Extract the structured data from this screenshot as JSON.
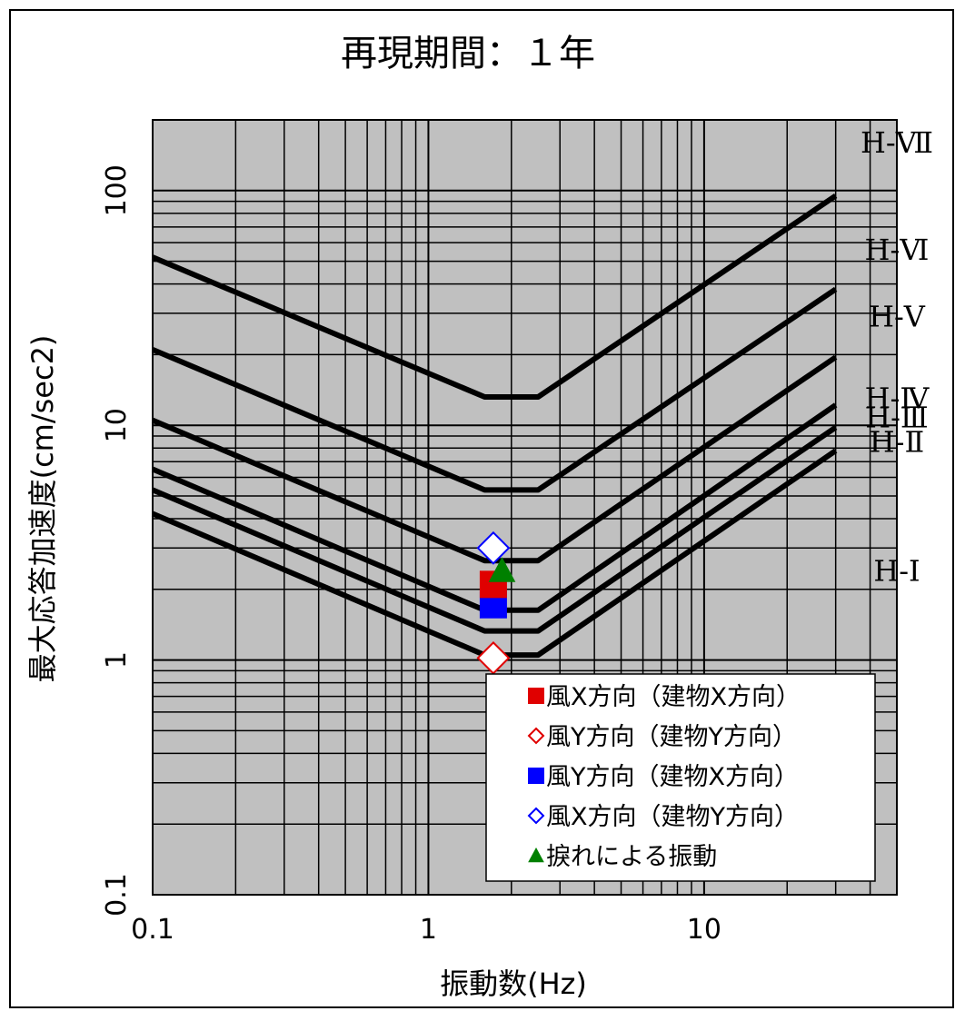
{
  "chart_data": {
    "type": "line",
    "title": "再現期間：１年",
    "xlabel": "振動数(Hz)",
    "ylabel": "最大応答加速度(cm/sec2)",
    "xscale": "log",
    "yscale": "log",
    "xlim": [
      0.1,
      50
    ],
    "ylim": [
      0.1,
      200
    ],
    "xticks": [
      "0.1",
      "1",
      "10"
    ],
    "yticks": [
      "0.1",
      "1",
      "10",
      "100"
    ],
    "grid": true,
    "background_color": "#c0c0c0",
    "curves": [
      {
        "name": "H-Ⅰ",
        "points": [
          [
            0.1,
            4.2
          ],
          [
            1.6,
            1.05
          ],
          [
            2.5,
            1.05
          ],
          [
            30,
            7.8
          ]
        ]
      },
      {
        "name": "H-Ⅱ",
        "points": [
          [
            0.1,
            5.3
          ],
          [
            1.6,
            1.33
          ],
          [
            2.5,
            1.33
          ],
          [
            30,
            9.8
          ]
        ]
      },
      {
        "name": "H-Ⅲ",
        "points": [
          [
            0.1,
            6.5
          ],
          [
            1.6,
            1.63
          ],
          [
            2.5,
            1.63
          ],
          [
            30,
            12.2
          ]
        ]
      },
      {
        "name": "H-Ⅳ",
        "points": [
          [
            0.1,
            10.5
          ],
          [
            1.6,
            2.65
          ],
          [
            2.5,
            2.65
          ],
          [
            30,
            19.5
          ]
        ]
      },
      {
        "name": "H-Ⅴ",
        "points": [
          [
            0.1,
            21
          ],
          [
            1.6,
            5.3
          ],
          [
            2.5,
            5.3
          ],
          [
            30,
            38
          ]
        ]
      },
      {
        "name": "H-Ⅵ",
        "points": [
          [
            0.1,
            52
          ],
          [
            1.6,
            13.2
          ],
          [
            2.5,
            13.2
          ],
          [
            30,
            95
          ]
        ]
      }
    ],
    "curve_labels": [
      {
        "text": "H-Ⅰ",
        "y": 2.4
      },
      {
        "text": "H-Ⅱ",
        "y": 8.5
      },
      {
        "text": "H-Ⅲ",
        "y": 10.8
      },
      {
        "text": "H-Ⅳ",
        "y": 13.0
      },
      {
        "text": "H-Ⅴ",
        "y": 29
      },
      {
        "text": "H-Ⅵ",
        "y": 56
      },
      {
        "text": "H-Ⅶ",
        "y": 160
      }
    ],
    "points": [
      {
        "series": "風X方向（建物X方向）",
        "x": 1.72,
        "y": 2.1,
        "marker": "square",
        "color": "#e00000",
        "filled": true
      },
      {
        "series": "風Y方向（建物X方向）",
        "x": 1.72,
        "y": 1.72,
        "marker": "square",
        "color": "#0000ff",
        "filled": true
      },
      {
        "series": "風Y方向（建物Y方向）",
        "x": 1.72,
        "y": 1.02,
        "marker": "diamond",
        "color": "#e00000",
        "filled": false
      },
      {
        "series": "風X方向（建物Y方向）",
        "x": 1.72,
        "y": 3.0,
        "marker": "diamond",
        "color": "#0000ff",
        "filled": false
      },
      {
        "series": "捩れによる振動",
        "x": 1.85,
        "y": 2.4,
        "marker": "triangle",
        "color": "#008000",
        "filled": true
      }
    ],
    "legend": {
      "placement": "bottom-right",
      "entries": [
        {
          "label": "風X方向（建物X方向）",
          "marker": "square",
          "color": "#e00000",
          "filled": true
        },
        {
          "label": "風Y方向（建物Y方向）",
          "marker": "diamond",
          "color": "#e00000",
          "filled": false
        },
        {
          "label": "風Y方向（建物X方向）",
          "marker": "square",
          "color": "#0000ff",
          "filled": true
        },
        {
          "label": "風X方向（建物Y方向）",
          "marker": "diamond",
          "color": "#0000ff",
          "filled": false
        },
        {
          "label": "捩れによる振動",
          "marker": "triangle",
          "color": "#008000",
          "filled": true
        }
      ]
    }
  }
}
